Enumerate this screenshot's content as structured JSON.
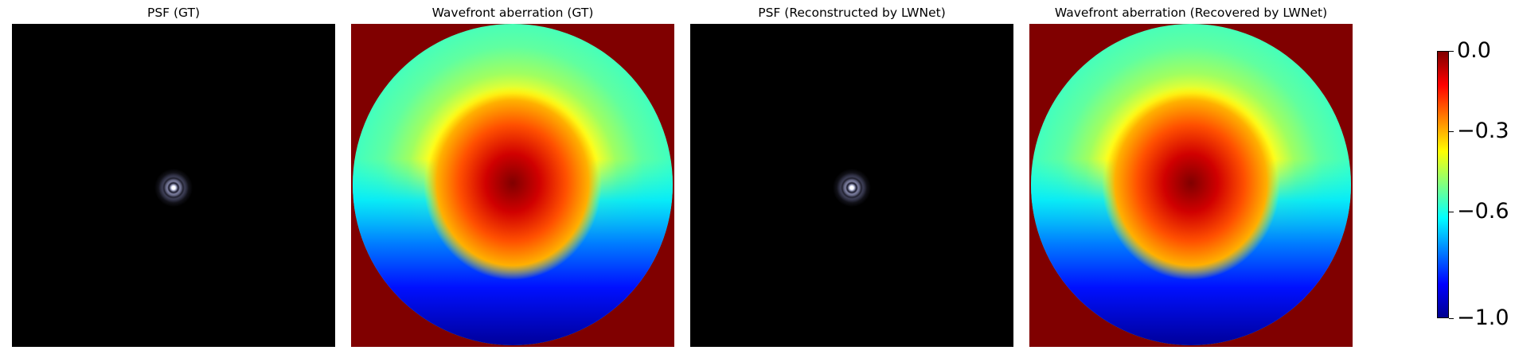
{
  "chart_data": [
    {
      "type": "heatmap",
      "title": "PSF (GT)",
      "content": "point spread function",
      "colormap": "bone",
      "axes_visible": false
    },
    {
      "type": "heatmap",
      "title": "Wavefront aberration (GT)",
      "content": "wavefront on circular pupil",
      "colormap": "jet",
      "center_value": 0.0,
      "bottom_edge_value": -1.0,
      "axes_visible": false
    },
    {
      "type": "heatmap",
      "title": "PSF (Reconstructed by LWNet)",
      "content": "point spread function",
      "colormap": "bone",
      "axes_visible": false
    },
    {
      "type": "heatmap",
      "title": "Wavefront aberration (Recovered by LWNet)",
      "content": "wavefront on circular pupil",
      "colormap": "jet",
      "center_value": 0.0,
      "bottom_edge_value": -1.0,
      "axes_visible": false
    }
  ],
  "colorbar": {
    "colormap": "jet",
    "range": [
      -1.0,
      0.0
    ],
    "ticks": [
      {
        "value": 0.0,
        "label": "0.0"
      },
      {
        "value": -0.3,
        "label": "−0.3"
      },
      {
        "value": -0.6,
        "label": "−0.6"
      },
      {
        "value": -1.0,
        "label": "−1.0"
      }
    ]
  },
  "colors": {
    "jet_stops": [
      "#00008f",
      "#0000ff",
      "#0080ff",
      "#00ffff",
      "#80ff80",
      "#ffff00",
      "#ff8000",
      "#ff0000",
      "#800000"
    ],
    "background": "#800000"
  }
}
